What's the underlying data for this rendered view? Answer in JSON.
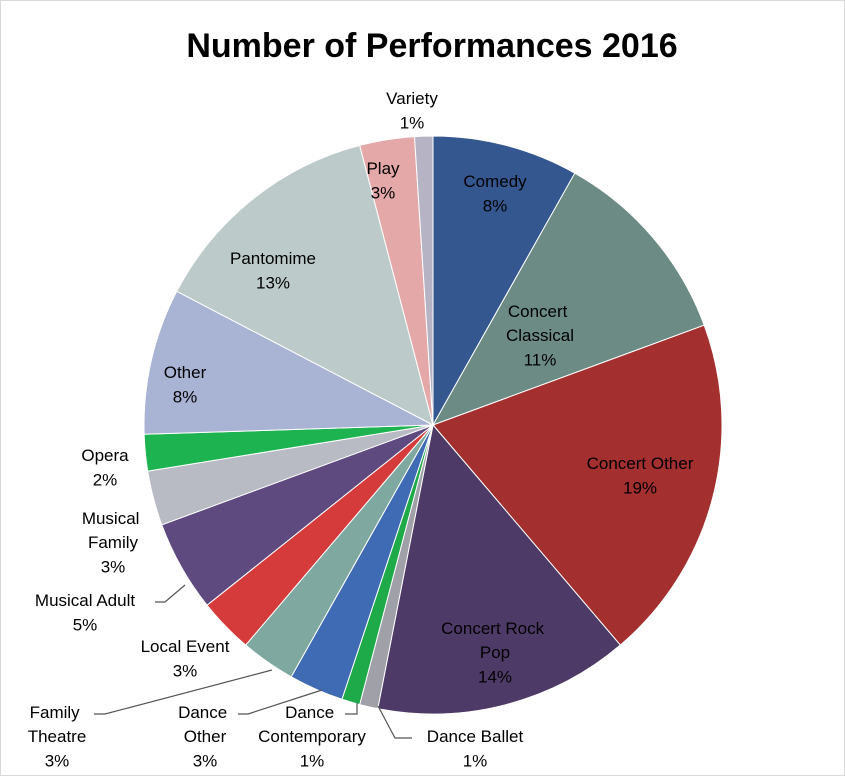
{
  "chart_data": {
    "type": "pie",
    "title": "Number of Performances 2016",
    "categories": [
      "Comedy",
      "Concert Classical",
      "Concert Other",
      "Concert Rock Pop",
      "Dance Ballet",
      "Dance Contemporary",
      "Dance Other",
      "Family Theatre",
      "Local Event",
      "Musical Adult",
      "Musical Family",
      "Opera",
      "Other",
      "Pantomime",
      "Play",
      "Variety"
    ],
    "values": [
      8,
      11,
      19,
      14,
      1,
      1,
      3,
      3,
      3,
      5,
      3,
      2,
      8,
      13,
      3,
      1
    ],
    "value_labels": [
      "8%",
      "11%",
      "19%",
      "14%",
      "1%",
      "1%",
      "3%",
      "3%",
      "3%",
      "5%",
      "3%",
      "2%",
      "8%",
      "13%",
      "3%",
      "1%"
    ],
    "colors": [
      "#34578f",
      "#6b8b84",
      "#a3302f",
      "#4e3a66",
      "#a0a0a8",
      "#1faa4a",
      "#3f6bb5",
      "#7fa8a0",
      "#d63b3b",
      "#5e4a7e",
      "#b8bac4",
      "#1db350",
      "#a9b3d4",
      "#bccbca",
      "#e4a8a8",
      "#b6b4c4"
    ]
  }
}
